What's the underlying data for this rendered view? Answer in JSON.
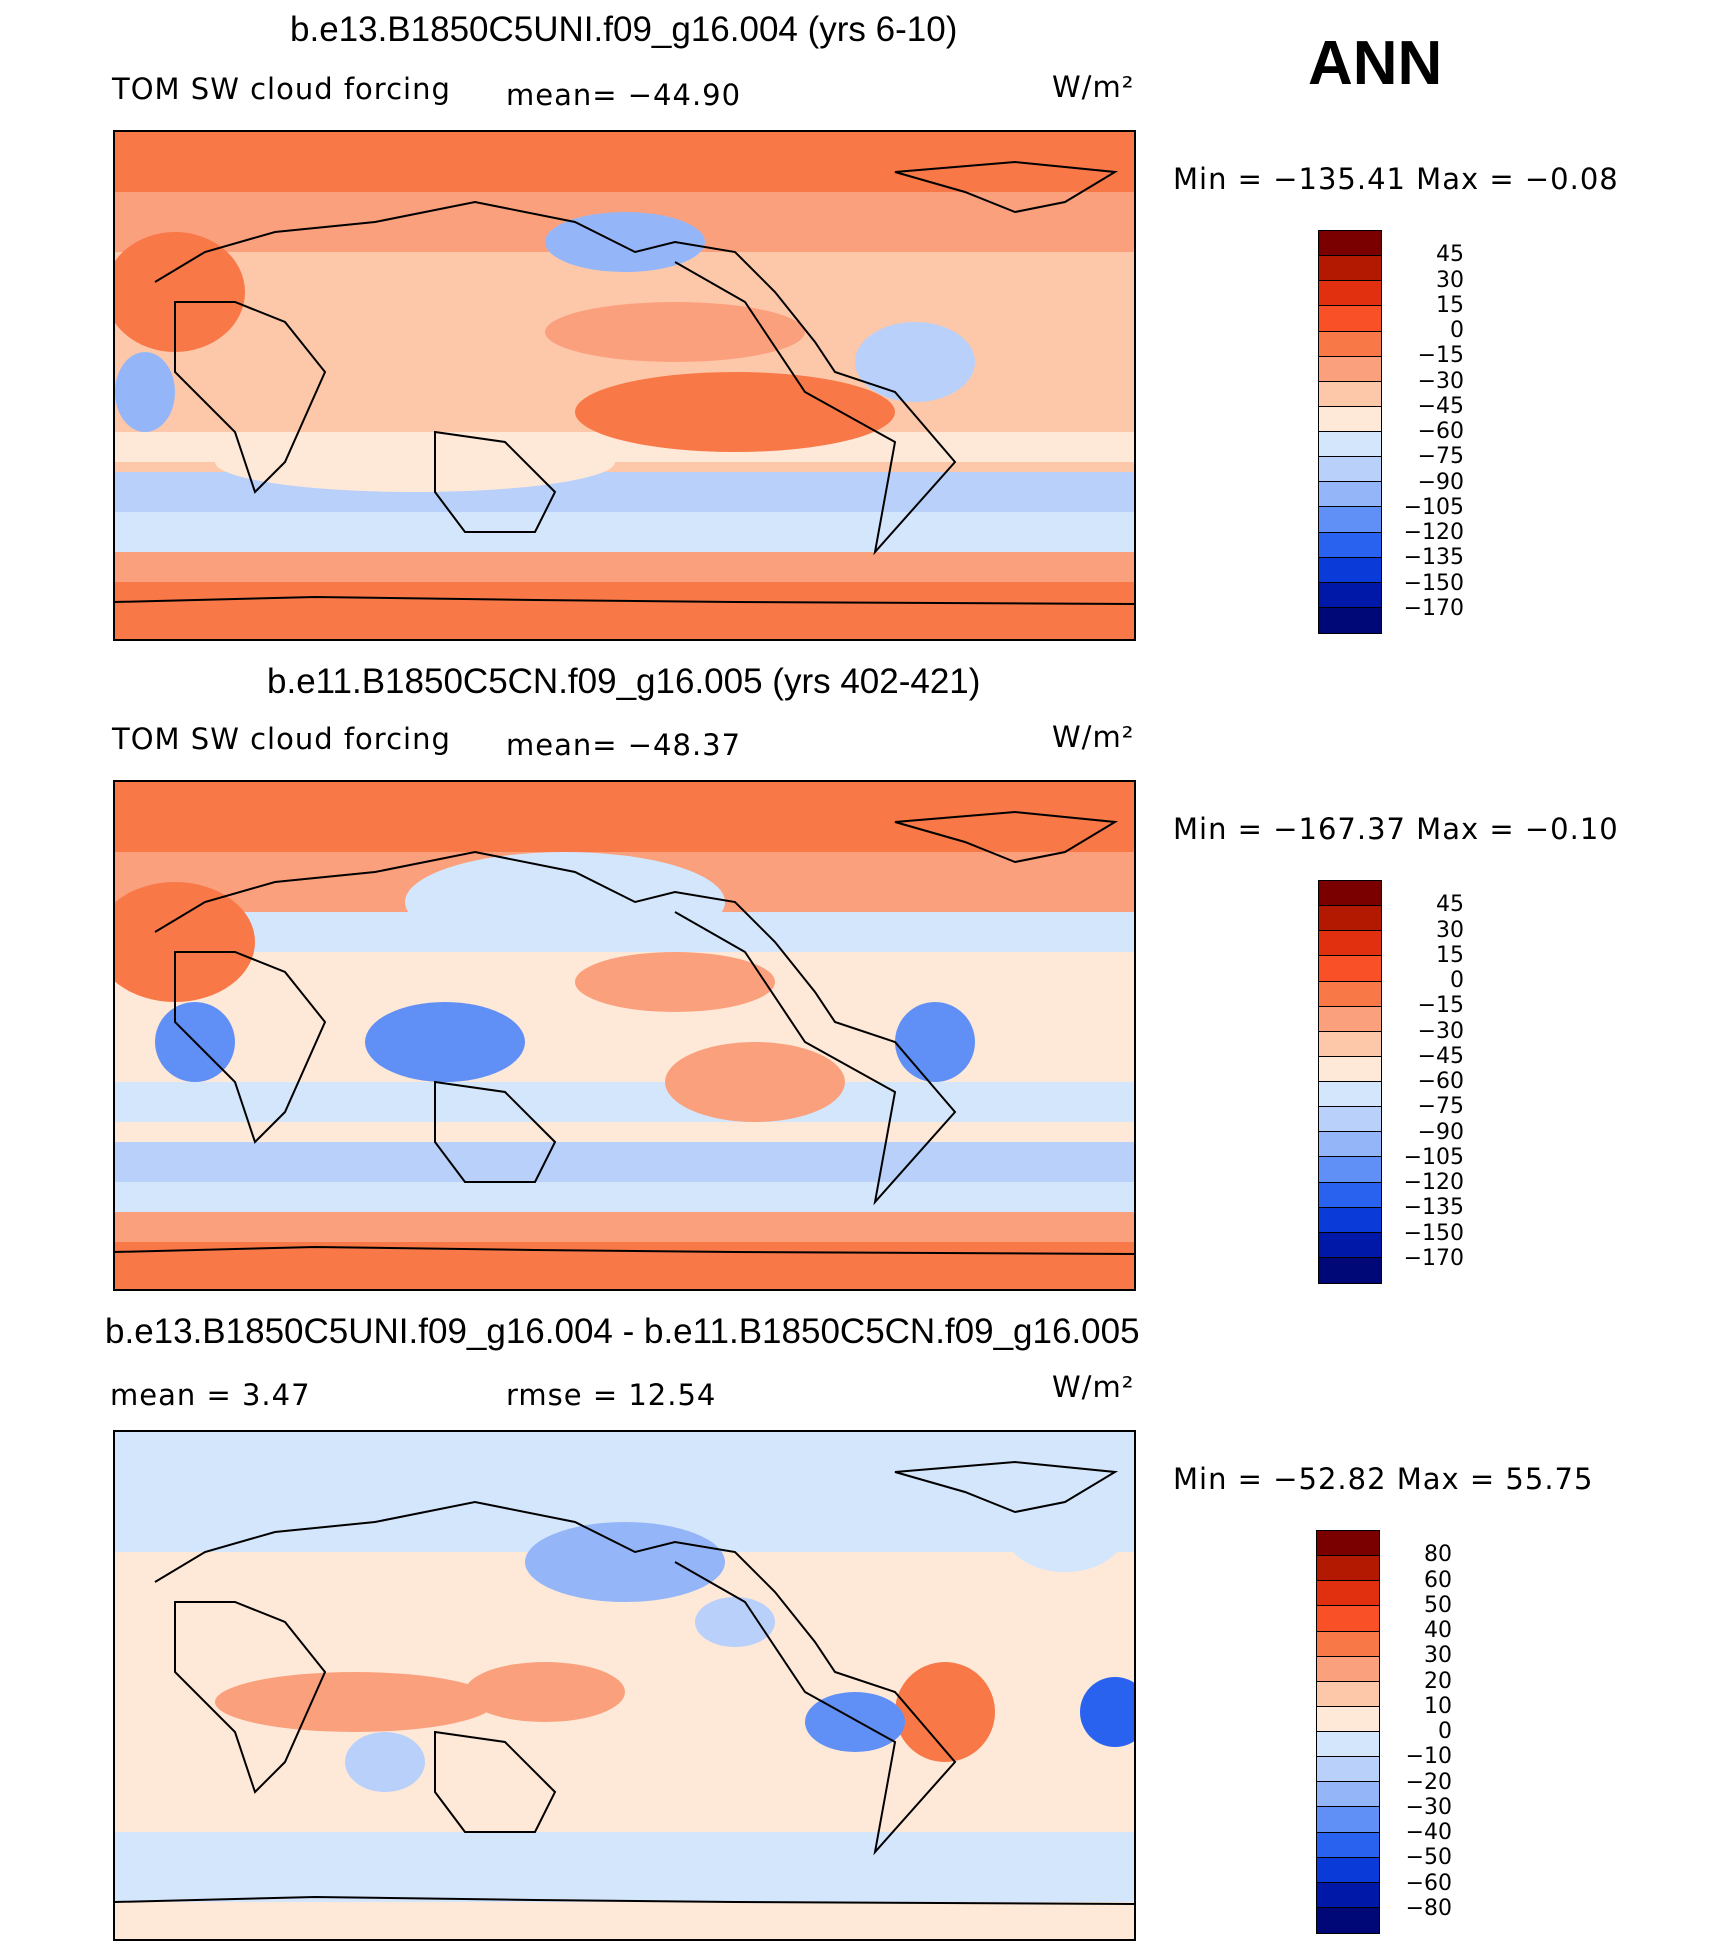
{
  "season": "ANN",
  "panels": [
    {
      "title": "b.e13.B1850C5UNI.f09_g16.004 (yrs 6-10)",
      "left_label": "TOM SW cloud forcing",
      "stat_label": "mean= −44.90",
      "units": "W/m²",
      "minmax": "Min = −135.41 Max =  −0.08",
      "colorbar": [
        "45",
        "30",
        "15",
        "0",
        "−15",
        "−30",
        "−45",
        "−60",
        "−75",
        "−90",
        "−105",
        "−120",
        "−135",
        "−150",
        "−170"
      ]
    },
    {
      "title": "b.e11.B1850C5CN.f09_g16.005 (yrs 402-421)",
      "left_label": "TOM SW cloud forcing",
      "stat_label": "mean= −48.37",
      "units": "W/m²",
      "minmax": "Min = −167.37 Max =  −0.10",
      "colorbar": [
        "45",
        "30",
        "15",
        "0",
        "−15",
        "−30",
        "−45",
        "−60",
        "−75",
        "−90",
        "−105",
        "−120",
        "−135",
        "−150",
        "−170"
      ]
    },
    {
      "title": "b.e13.B1850C5UNI.f09_g16.004 - b.e11.B1850C5CN.f09_g16.005",
      "left_label": "mean =    3.47",
      "stat_label": "rmse =   12.54",
      "units": "W/m²",
      "minmax": "Min = −52.82 Max =  55.75",
      "colorbar": [
        "80",
        "60",
        "50",
        "40",
        "30",
        "20",
        "10",
        "0",
        "−10",
        "−20",
        "−30",
        "−40",
        "−50",
        "−60",
        "−80"
      ]
    }
  ],
  "colors": {
    "abs_scale": [
      "#7a0000",
      "#b31800",
      "#e03010",
      "#fa5028",
      "#f87848",
      "#fba07c",
      "#fdc8aa",
      "#fee8d8",
      "#d4e6fb",
      "#b8d0fa",
      "#94b6f8",
      "#6090f5",
      "#2a62f0",
      "#0a3ad8",
      "#0018a8",
      "#000878"
    ],
    "diff_scale": [
      "#7a0000",
      "#b31800",
      "#e03010",
      "#fa5028",
      "#f87848",
      "#fba07c",
      "#fdc8aa",
      "#fee8d8",
      "#d4e6fb",
      "#b8d0fa",
      "#94b6f8",
      "#6090f5",
      "#2a62f0",
      "#0a3ad8",
      "#0018a8",
      "#000878"
    ]
  }
}
